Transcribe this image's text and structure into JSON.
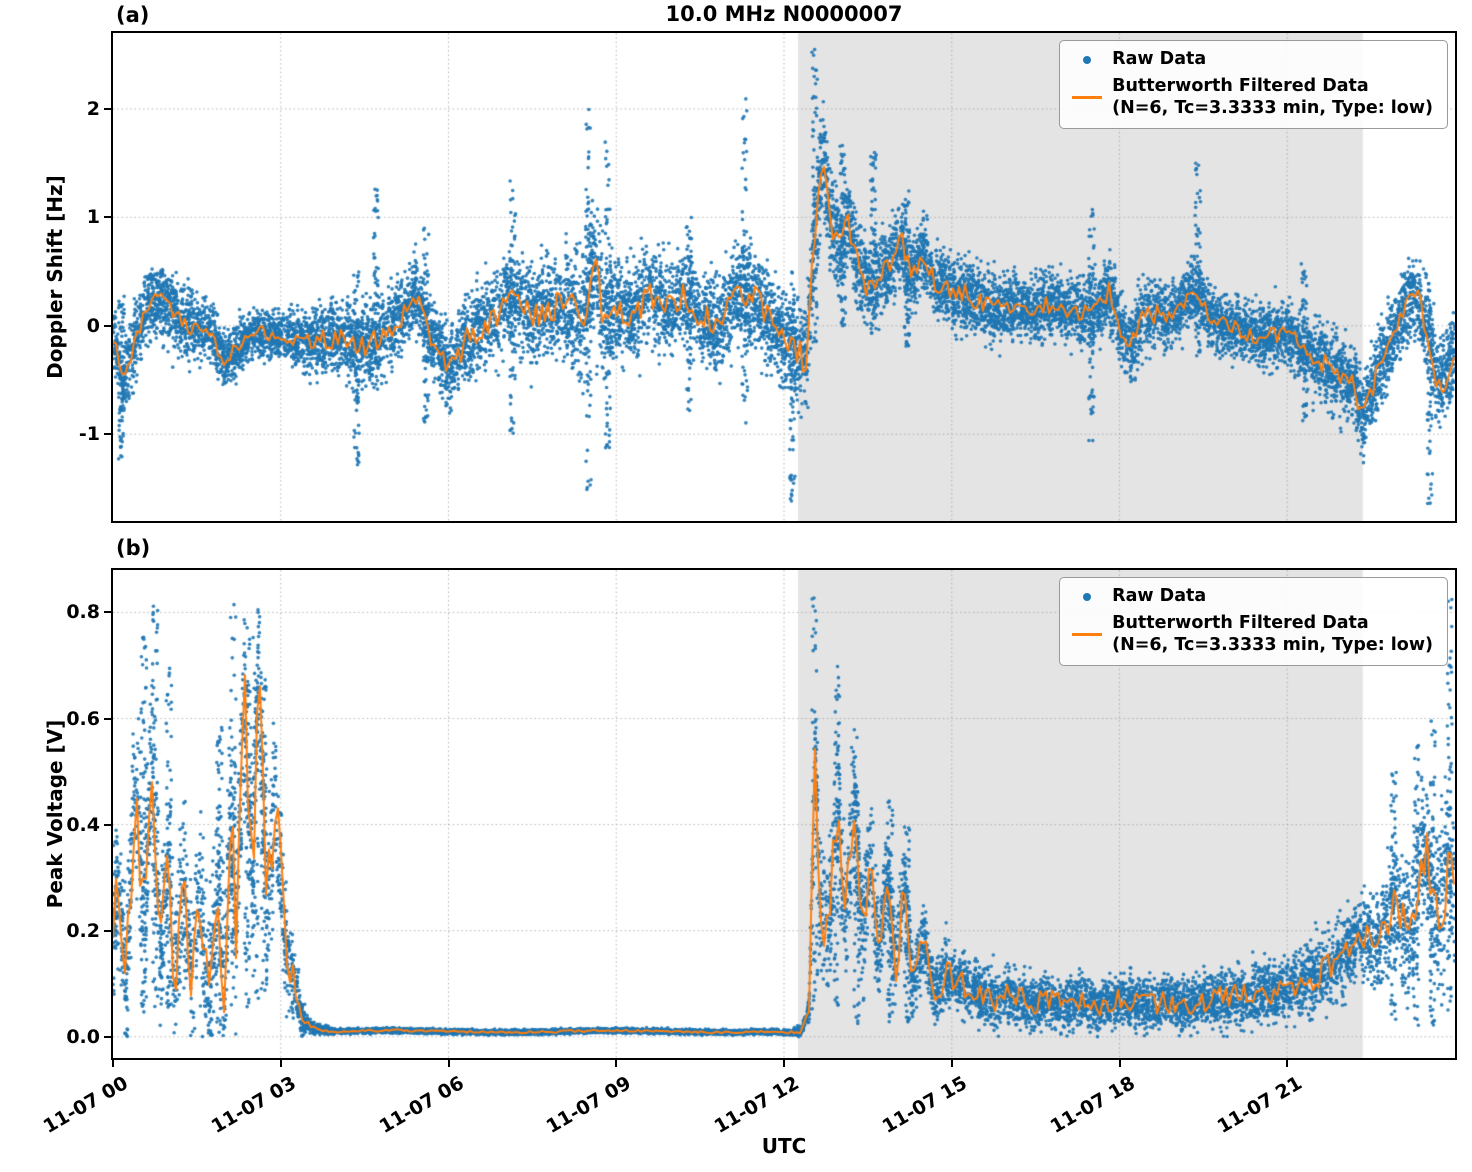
{
  "chart_data": {
    "type": "scatter",
    "x_axis": {
      "label": "UTC",
      "range_hours": [
        0,
        24
      ],
      "tick_hours": [
        0,
        3,
        6,
        9,
        12,
        15,
        18,
        21
      ],
      "tick_labels": [
        "11-07 00",
        "11-07 03",
        "11-07 06",
        "11-07 09",
        "11-07 12",
        "11-07 15",
        "11-07 18",
        "11-07 21"
      ]
    },
    "shaded_region_hours": [
      12.25,
      22.35
    ],
    "legend": {
      "raw": "Raw Data",
      "filtered_line1": "Butterworth Filtered Data",
      "filtered_line2": "(N=6, Tc=3.3333 min, Type: low)"
    },
    "colors": {
      "raw": "#1f77b4",
      "filtered": "#ff7f0e",
      "shade": "#e4e4e4",
      "grid": "#9e9e9e"
    },
    "panels": [
      {
        "panel_label": "(a)",
        "title": "10.0 MHz N0000007",
        "ylabel": "Doppler Shift [Hz]",
        "ylim": [
          -1.8,
          2.7
        ],
        "yticks": [
          -1,
          0,
          1,
          2
        ],
        "ytick_labels": [
          "-1",
          "0",
          "1",
          "2"
        ],
        "seed": 42,
        "n_scatter": 13000,
        "line_jitter": 0.35,
        "clip_zero": false,
        "filtered_waypoints": {
          "t": [
            0.0,
            0.15,
            0.3,
            0.5,
            0.7,
            0.9,
            1.1,
            1.4,
            1.7,
            2.0,
            2.3,
            2.6,
            2.9,
            3.2,
            3.6,
            4.0,
            4.4,
            4.8,
            5.1,
            5.4,
            5.7,
            6.0,
            6.3,
            6.6,
            6.9,
            7.2,
            7.5,
            7.8,
            8.1,
            8.4,
            8.6,
            8.8,
            9.0,
            9.3,
            9.6,
            9.9,
            10.2,
            10.5,
            10.8,
            11.1,
            11.4,
            11.7,
            12.0,
            12.2,
            12.4,
            12.55,
            12.7,
            12.85,
            13.0,
            13.15,
            13.3,
            13.5,
            13.7,
            13.9,
            14.1,
            14.3,
            14.5,
            14.7,
            14.9,
            15.2,
            15.5,
            15.8,
            16.1,
            16.4,
            16.7,
            17.0,
            17.3,
            17.6,
            17.8,
            18.0,
            18.2,
            18.4,
            18.7,
            19.0,
            19.3,
            19.6,
            19.9,
            20.2,
            20.5,
            20.8,
            21.1,
            21.4,
            21.7,
            22.0,
            22.2,
            22.35,
            22.5,
            22.7,
            22.9,
            23.1,
            23.3,
            23.5,
            23.7,
            23.85,
            24.0
          ],
          "v": [
            -0.1,
            -0.55,
            -0.3,
            0.05,
            0.2,
            0.25,
            0.1,
            0.0,
            -0.05,
            -0.3,
            -0.15,
            -0.05,
            -0.1,
            -0.12,
            -0.15,
            -0.1,
            -0.2,
            -0.1,
            0.05,
            0.3,
            -0.1,
            -0.45,
            -0.15,
            0.0,
            0.1,
            0.3,
            0.1,
            0.15,
            0.2,
            0.1,
            0.55,
            0.05,
            0.2,
            0.1,
            0.3,
            0.15,
            0.3,
            0.1,
            0.0,
            0.25,
            0.3,
            0.1,
            -0.15,
            -0.25,
            -0.3,
            0.9,
            1.6,
            0.9,
            0.75,
            1.0,
            0.6,
            0.35,
            0.45,
            0.55,
            0.8,
            0.45,
            0.65,
            0.4,
            0.35,
            0.3,
            0.2,
            0.15,
            0.2,
            0.15,
            0.2,
            0.15,
            0.1,
            0.12,
            0.35,
            0.0,
            -0.2,
            0.1,
            0.1,
            0.12,
            0.35,
            0.1,
            0.0,
            -0.05,
            -0.1,
            -0.08,
            -0.12,
            -0.3,
            -0.35,
            -0.5,
            -0.55,
            -0.85,
            -0.6,
            -0.35,
            -0.1,
            0.2,
            0.3,
            0.0,
            -0.6,
            -0.45,
            -0.25
          ]
        },
        "scatter_spread": {
          "t": [
            0,
            1,
            2,
            3,
            4,
            5,
            6,
            7,
            8,
            8.6,
            9,
            10,
            11,
            12,
            12.6,
            13,
            14,
            15,
            16,
            17,
            18,
            19,
            20,
            21,
            22,
            23,
            24
          ],
          "s": [
            0.28,
            0.3,
            0.22,
            0.18,
            0.3,
            0.3,
            0.32,
            0.35,
            0.4,
            0.55,
            0.4,
            0.35,
            0.35,
            0.4,
            0.45,
            0.35,
            0.3,
            0.28,
            0.25,
            0.25,
            0.28,
            0.25,
            0.22,
            0.25,
            0.3,
            0.3,
            0.35
          ]
        },
        "outliers": [
          {
            "t": 0.15,
            "lo": -1.25,
            "hi": 0.3
          },
          {
            "t": 4.35,
            "lo": -1.3,
            "hi": 0.6
          },
          {
            "t": 4.7,
            "lo": -0.6,
            "hi": 1.3
          },
          {
            "t": 5.6,
            "lo": -0.9,
            "hi": 0.9
          },
          {
            "t": 7.15,
            "lo": -1.0,
            "hi": 1.35
          },
          {
            "t": 8.5,
            "lo": -1.55,
            "hi": 2.0
          },
          {
            "t": 8.85,
            "lo": -1.15,
            "hi": 1.75
          },
          {
            "t": 10.3,
            "lo": -0.8,
            "hi": 1.0
          },
          {
            "t": 11.3,
            "lo": -0.9,
            "hi": 2.1
          },
          {
            "t": 12.15,
            "lo": -1.62,
            "hi": 0.5
          },
          {
            "t": 12.55,
            "lo": -0.4,
            "hi": 2.55
          },
          {
            "t": 13.05,
            "lo": 0.0,
            "hi": 1.75
          },
          {
            "t": 13.6,
            "lo": -0.1,
            "hi": 1.65
          },
          {
            "t": 14.2,
            "lo": -0.2,
            "hi": 1.3
          },
          {
            "t": 17.5,
            "lo": -1.1,
            "hi": 1.1
          },
          {
            "t": 19.4,
            "lo": -0.3,
            "hi": 1.5
          },
          {
            "t": 21.3,
            "lo": -0.9,
            "hi": 0.6
          },
          {
            "t": 23.55,
            "lo": -1.65,
            "hi": 0.4
          }
        ]
      },
      {
        "panel_label": "(b)",
        "title": "",
        "ylabel": "Peak Voltage [V]",
        "ylim": [
          -0.04,
          0.88
        ],
        "yticks": [
          0.0,
          0.2,
          0.4,
          0.6,
          0.8
        ],
        "ytick_labels": [
          "0.0",
          "0.2",
          "0.4",
          "0.6",
          "0.8"
        ],
        "seed": 7,
        "n_scatter": 11000,
        "line_jitter": 0.5,
        "clip_zero": true,
        "filtered_waypoints": {
          "t": [
            0.0,
            0.1,
            0.25,
            0.4,
            0.55,
            0.7,
            0.85,
            1.0,
            1.1,
            1.25,
            1.4,
            1.55,
            1.7,
            1.85,
            2.0,
            2.1,
            2.2,
            2.35,
            2.5,
            2.6,
            2.75,
            2.9,
            3.0,
            3.1,
            3.25,
            3.4,
            3.6,
            4.0,
            5.0,
            6.0,
            7.0,
            8.0,
            9.0,
            10.0,
            11.0,
            11.5,
            12.0,
            12.3,
            12.45,
            12.55,
            12.65,
            12.8,
            12.95,
            13.1,
            13.25,
            13.4,
            13.55,
            13.7,
            13.85,
            14.0,
            14.15,
            14.3,
            14.5,
            14.7,
            14.9,
            15.2,
            15.5,
            15.8,
            16.1,
            16.4,
            16.7,
            17.0,
            17.3,
            17.6,
            18.0,
            18.4,
            18.8,
            19.2,
            19.6,
            20.0,
            20.4,
            20.8,
            21.2,
            21.6,
            22.0,
            22.3,
            22.6,
            22.9,
            23.2,
            23.45,
            23.7,
            23.85,
            24.0
          ],
          "v": [
            0.18,
            0.3,
            0.12,
            0.5,
            0.2,
            0.54,
            0.15,
            0.35,
            0.1,
            0.3,
            0.12,
            0.28,
            0.08,
            0.25,
            0.1,
            0.45,
            0.2,
            0.65,
            0.3,
            0.7,
            0.25,
            0.45,
            0.3,
            0.15,
            0.1,
            0.03,
            0.015,
            0.01,
            0.012,
            0.01,
            0.008,
            0.01,
            0.012,
            0.01,
            0.008,
            0.01,
            0.008,
            0.01,
            0.05,
            0.53,
            0.25,
            0.2,
            0.45,
            0.22,
            0.45,
            0.2,
            0.35,
            0.15,
            0.32,
            0.12,
            0.3,
            0.1,
            0.18,
            0.08,
            0.12,
            0.1,
            0.08,
            0.07,
            0.08,
            0.06,
            0.07,
            0.06,
            0.07,
            0.055,
            0.07,
            0.06,
            0.065,
            0.06,
            0.07,
            0.075,
            0.08,
            0.085,
            0.1,
            0.12,
            0.15,
            0.2,
            0.17,
            0.25,
            0.18,
            0.35,
            0.22,
            0.3,
            0.27
          ]
        },
        "scatter_spread": {
          "t": [
            0,
            0.5,
            1,
            1.5,
            2,
            2.5,
            3,
            3.2,
            3.5,
            4,
            6,
            8,
            10,
            12,
            12.4,
            12.6,
            13,
            13.5,
            14,
            14.5,
            15,
            16,
            17,
            18,
            19,
            20,
            21,
            22,
            22.5,
            23,
            23.5,
            24
          ],
          "s": [
            0.12,
            0.15,
            0.13,
            0.12,
            0.15,
            0.16,
            0.12,
            0.06,
            0.01,
            0.004,
            0.004,
            0.004,
            0.004,
            0.004,
            0.01,
            0.12,
            0.1,
            0.1,
            0.08,
            0.06,
            0.05,
            0.045,
            0.04,
            0.04,
            0.04,
            0.045,
            0.05,
            0.06,
            0.07,
            0.09,
            0.12,
            0.13
          ]
        },
        "outliers": [
          {
            "t": 0.55,
            "lo": 0.05,
            "hi": 0.8
          },
          {
            "t": 0.75,
            "lo": 0.05,
            "hi": 0.82
          },
          {
            "t": 1.0,
            "lo": 0.05,
            "hi": 0.7
          },
          {
            "t": 1.9,
            "lo": 0.02,
            "hi": 0.6
          },
          {
            "t": 2.15,
            "lo": 0.05,
            "hi": 0.82
          },
          {
            "t": 2.4,
            "lo": 0.05,
            "hi": 0.75
          },
          {
            "t": 2.55,
            "lo": 0.05,
            "hi": 0.8
          },
          {
            "t": 2.7,
            "lo": 0.05,
            "hi": 0.7
          },
          {
            "t": 12.55,
            "lo": 0.05,
            "hi": 0.83
          },
          {
            "t": 12.95,
            "lo": 0.05,
            "hi": 0.72
          },
          {
            "t": 13.3,
            "lo": 0.02,
            "hi": 0.62
          },
          {
            "t": 13.9,
            "lo": 0.02,
            "hi": 0.45
          },
          {
            "t": 14.2,
            "lo": 0.02,
            "hi": 0.4
          },
          {
            "t": 22.9,
            "lo": 0.02,
            "hi": 0.5
          },
          {
            "t": 23.3,
            "lo": 0.02,
            "hi": 0.55
          },
          {
            "t": 23.6,
            "lo": 0.02,
            "hi": 0.6
          },
          {
            "t": 23.9,
            "lo": 0.05,
            "hi": 0.83
          }
        ]
      }
    ]
  }
}
